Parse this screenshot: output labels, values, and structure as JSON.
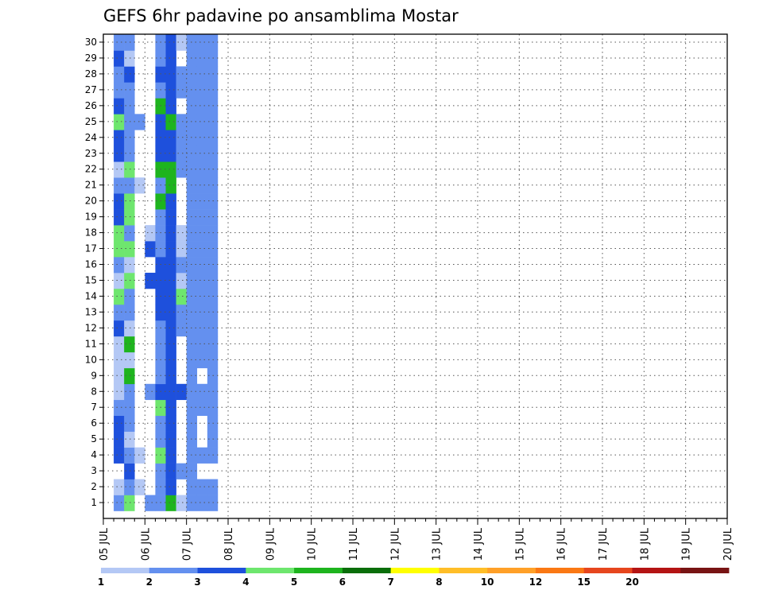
{
  "chart_data": {
    "type": "heatmap",
    "title": "GEFS 6hr padavine po ansamblima Mostar",
    "y_members": [
      "1",
      "2",
      "3",
      "4",
      "5",
      "6",
      "7",
      "8",
      "9",
      "10",
      "11",
      "12",
      "13",
      "14",
      "15",
      "16",
      "17",
      "18",
      "19",
      "20",
      "21",
      "22",
      "23",
      "24",
      "25",
      "26",
      "27",
      "28",
      "29",
      "30"
    ],
    "x_labels": [
      "05 JUL",
      "06 JUL",
      "07 JUL",
      "08 JUL",
      "09 JUL",
      "10 JUL",
      "11 JUL",
      "12 JUL",
      "13 JUL",
      "14 JUL",
      "15 JUL",
      "16 JUL",
      "17 JUL",
      "18 JUL",
      "19 JUL",
      "20 JUL"
    ],
    "color_scale": {
      "labels": [
        "1",
        "2",
        "3",
        "4",
        "5",
        "6",
        "7",
        "8",
        "10",
        "12",
        "15",
        "20"
      ],
      "colors": [
        "#b4c8f5",
        "#6490ef",
        "#1e50dc",
        "#6ee66e",
        "#1eb41e",
        "#0a6e0a",
        "#ffff00",
        "#ffbe28",
        "#ffa028",
        "#fa7814",
        "#e6461e",
        "#b41414",
        "#781414"
      ]
    },
    "cells": [
      [
        0,
        1,
        2
      ],
      [
        1,
        1,
        1
      ],
      [
        3,
        1,
        3
      ],
      [
        4,
        1,
        3
      ],
      [
        5,
        1,
        3
      ],
      [
        6,
        1,
        2
      ],
      [
        7,
        1,
        1
      ],
      [
        8,
        1,
        1
      ],
      [
        9,
        1,
        1
      ],
      [
        10,
        1,
        1
      ],
      [
        11,
        1,
        3
      ],
      [
        12,
        1,
        2
      ],
      [
        13,
        1,
        4
      ],
      [
        14,
        1,
        1
      ],
      [
        15,
        1,
        2
      ],
      [
        16,
        1,
        4
      ],
      [
        17,
        1,
        4
      ],
      [
        18,
        1,
        3
      ],
      [
        19,
        1,
        3
      ],
      [
        20,
        1,
        2
      ],
      [
        21,
        1,
        1
      ],
      [
        22,
        1,
        3
      ],
      [
        23,
        1,
        3
      ],
      [
        24,
        1,
        4
      ],
      [
        25,
        1,
        3
      ],
      [
        26,
        1,
        2
      ],
      [
        27,
        1,
        2
      ],
      [
        28,
        1,
        3
      ],
      [
        29,
        1,
        2
      ],
      [
        0,
        2,
        4
      ],
      [
        1,
        2,
        2
      ],
      [
        2,
        2,
        3
      ],
      [
        3,
        2,
        2
      ],
      [
        4,
        2,
        1
      ],
      [
        5,
        2,
        2
      ],
      [
        6,
        2,
        2
      ],
      [
        7,
        2,
        2
      ],
      [
        8,
        2,
        5
      ],
      [
        9,
        2,
        1
      ],
      [
        10,
        2,
        5
      ],
      [
        11,
        2,
        1
      ],
      [
        12,
        2,
        2
      ],
      [
        13,
        2,
        2
      ],
      [
        14,
        2,
        4
      ],
      [
        15,
        2,
        1
      ],
      [
        16,
        2,
        4
      ],
      [
        17,
        2,
        2
      ],
      [
        18,
        2,
        4
      ],
      [
        19,
        2,
        4
      ],
      [
        20,
        2,
        2
      ],
      [
        21,
        2,
        4
      ],
      [
        22,
        2,
        2
      ],
      [
        23,
        2,
        2
      ],
      [
        24,
        2,
        2
      ],
      [
        25,
        2,
        2
      ],
      [
        26,
        2,
        2
      ],
      [
        27,
        2,
        3
      ],
      [
        28,
        2,
        1
      ],
      [
        29,
        2,
        2
      ],
      [
        1,
        3,
        1
      ],
      [
        3,
        3,
        1
      ],
      [
        20,
        3,
        1
      ],
      [
        24,
        3,
        2
      ],
      [
        0,
        4,
        2
      ],
      [
        7,
        4,
        2
      ],
      [
        14,
        4,
        3
      ],
      [
        16,
        4,
        3
      ],
      [
        17,
        4,
        1
      ],
      [
        0,
        5,
        2
      ],
      [
        1,
        5,
        2
      ],
      [
        2,
        5,
        2
      ],
      [
        3,
        5,
        4
      ],
      [
        4,
        5,
        2
      ],
      [
        5,
        5,
        2
      ],
      [
        6,
        5,
        4
      ],
      [
        7,
        5,
        3
      ],
      [
        8,
        5,
        2
      ],
      [
        9,
        5,
        2
      ],
      [
        10,
        5,
        2
      ],
      [
        11,
        5,
        2
      ],
      [
        12,
        5,
        3
      ],
      [
        13,
        5,
        3
      ],
      [
        14,
        5,
        3
      ],
      [
        15,
        5,
        3
      ],
      [
        16,
        5,
        2
      ],
      [
        17,
        5,
        2
      ],
      [
        18,
        5,
        2
      ],
      [
        19,
        5,
        5
      ],
      [
        20,
        5,
        2
      ],
      [
        21,
        5,
        5
      ],
      [
        22,
        5,
        3
      ],
      [
        23,
        5,
        3
      ],
      [
        24,
        5,
        3
      ],
      [
        25,
        5,
        5
      ],
      [
        26,
        5,
        2
      ],
      [
        27,
        5,
        3
      ],
      [
        28,
        5,
        2
      ],
      [
        29,
        5,
        2
      ],
      [
        0,
        6,
        5
      ],
      [
        1,
        6,
        3
      ],
      [
        2,
        6,
        3
      ],
      [
        3,
        6,
        3
      ],
      [
        4,
        6,
        3
      ],
      [
        5,
        6,
        3
      ],
      [
        6,
        6,
        3
      ],
      [
        7,
        6,
        3
      ],
      [
        8,
        6,
        3
      ],
      [
        9,
        6,
        3
      ],
      [
        10,
        6,
        3
      ],
      [
        11,
        6,
        3
      ],
      [
        12,
        6,
        3
      ],
      [
        13,
        6,
        3
      ],
      [
        14,
        6,
        3
      ],
      [
        15,
        6,
        3
      ],
      [
        16,
        6,
        3
      ],
      [
        17,
        6,
        3
      ],
      [
        18,
        6,
        3
      ],
      [
        19,
        6,
        3
      ],
      [
        20,
        6,
        5
      ],
      [
        21,
        6,
        5
      ],
      [
        22,
        6,
        3
      ],
      [
        23,
        6,
        3
      ],
      [
        24,
        6,
        5
      ],
      [
        25,
        6,
        3
      ],
      [
        26,
        6,
        3
      ],
      [
        27,
        6,
        3
      ],
      [
        28,
        6,
        3
      ],
      [
        29,
        6,
        3
      ],
      [
        0,
        7,
        1
      ],
      [
        2,
        7,
        2
      ],
      [
        7,
        7,
        3
      ],
      [
        11,
        7,
        2
      ],
      [
        12,
        7,
        2
      ],
      [
        13,
        7,
        4
      ],
      [
        14,
        7,
        1
      ],
      [
        15,
        7,
        2
      ],
      [
        16,
        7,
        1
      ],
      [
        17,
        7,
        1
      ],
      [
        21,
        7,
        2
      ],
      [
        22,
        7,
        2
      ],
      [
        23,
        7,
        2
      ],
      [
        24,
        7,
        2
      ],
      [
        26,
        7,
        2
      ],
      [
        27,
        7,
        2
      ],
      [
        29,
        7,
        1
      ],
      [
        0,
        8,
        2
      ],
      [
        1,
        8,
        2
      ],
      [
        2,
        8,
        2
      ],
      [
        3,
        8,
        2
      ],
      [
        4,
        8,
        2
      ],
      [
        5,
        8,
        2
      ],
      [
        6,
        8,
        2
      ],
      [
        7,
        8,
        2
      ],
      [
        8,
        8,
        2
      ],
      [
        9,
        8,
        2
      ],
      [
        10,
        8,
        2
      ],
      [
        11,
        8,
        2
      ],
      [
        12,
        8,
        2
      ],
      [
        13,
        8,
        2
      ],
      [
        14,
        8,
        2
      ],
      [
        15,
        8,
        2
      ],
      [
        16,
        8,
        2
      ],
      [
        17,
        8,
        2
      ],
      [
        18,
        8,
        2
      ],
      [
        19,
        8,
        2
      ],
      [
        20,
        8,
        2
      ],
      [
        21,
        8,
        2
      ],
      [
        22,
        8,
        2
      ],
      [
        23,
        8,
        2
      ],
      [
        24,
        8,
        2
      ],
      [
        25,
        8,
        2
      ],
      [
        26,
        8,
        2
      ],
      [
        27,
        8,
        2
      ],
      [
        28,
        8,
        2
      ],
      [
        29,
        8,
        2
      ],
      [
        0,
        9,
        2
      ],
      [
        1,
        9,
        2
      ],
      [
        3,
        9,
        2
      ],
      [
        6,
        9,
        2
      ],
      [
        7,
        9,
        2
      ],
      [
        9,
        9,
        2
      ],
      [
        10,
        9,
        2
      ],
      [
        11,
        9,
        2
      ],
      [
        12,
        9,
        2
      ],
      [
        13,
        9,
        2
      ],
      [
        14,
        9,
        2
      ],
      [
        15,
        9,
        2
      ],
      [
        16,
        9,
        2
      ],
      [
        17,
        9,
        2
      ],
      [
        18,
        9,
        2
      ],
      [
        19,
        9,
        2
      ],
      [
        20,
        9,
        2
      ],
      [
        21,
        9,
        2
      ],
      [
        22,
        9,
        2
      ],
      [
        23,
        9,
        2
      ],
      [
        24,
        9,
        2
      ],
      [
        25,
        9,
        2
      ],
      [
        26,
        9,
        2
      ],
      [
        27,
        9,
        2
      ],
      [
        28,
        9,
        2
      ],
      [
        29,
        9,
        2
      ],
      [
        0,
        10,
        2
      ],
      [
        1,
        10,
        2
      ],
      [
        3,
        10,
        2
      ],
      [
        4,
        10,
        2
      ],
      [
        5,
        10,
        2
      ],
      [
        6,
        10,
        2
      ],
      [
        7,
        10,
        2
      ],
      [
        8,
        10,
        2
      ],
      [
        9,
        10,
        2
      ],
      [
        10,
        10,
        2
      ],
      [
        11,
        10,
        2
      ],
      [
        12,
        10,
        2
      ],
      [
        13,
        10,
        2
      ],
      [
        14,
        10,
        2
      ],
      [
        15,
        10,
        2
      ],
      [
        16,
        10,
        2
      ],
      [
        17,
        10,
        2
      ],
      [
        18,
        10,
        2
      ],
      [
        19,
        10,
        2
      ],
      [
        20,
        10,
        2
      ],
      [
        21,
        10,
        2
      ],
      [
        22,
        10,
        2
      ],
      [
        23,
        10,
        2
      ],
      [
        24,
        10,
        2
      ],
      [
        25,
        10,
        2
      ],
      [
        26,
        10,
        2
      ],
      [
        27,
        10,
        2
      ],
      [
        28,
        10,
        2
      ],
      [
        29,
        10,
        2
      ]
    ],
    "notes_cells": "Each cell is [member_index (0=member 1), x column in 6hr steps from 05 JUL 00Z, colour level index]"
  }
}
